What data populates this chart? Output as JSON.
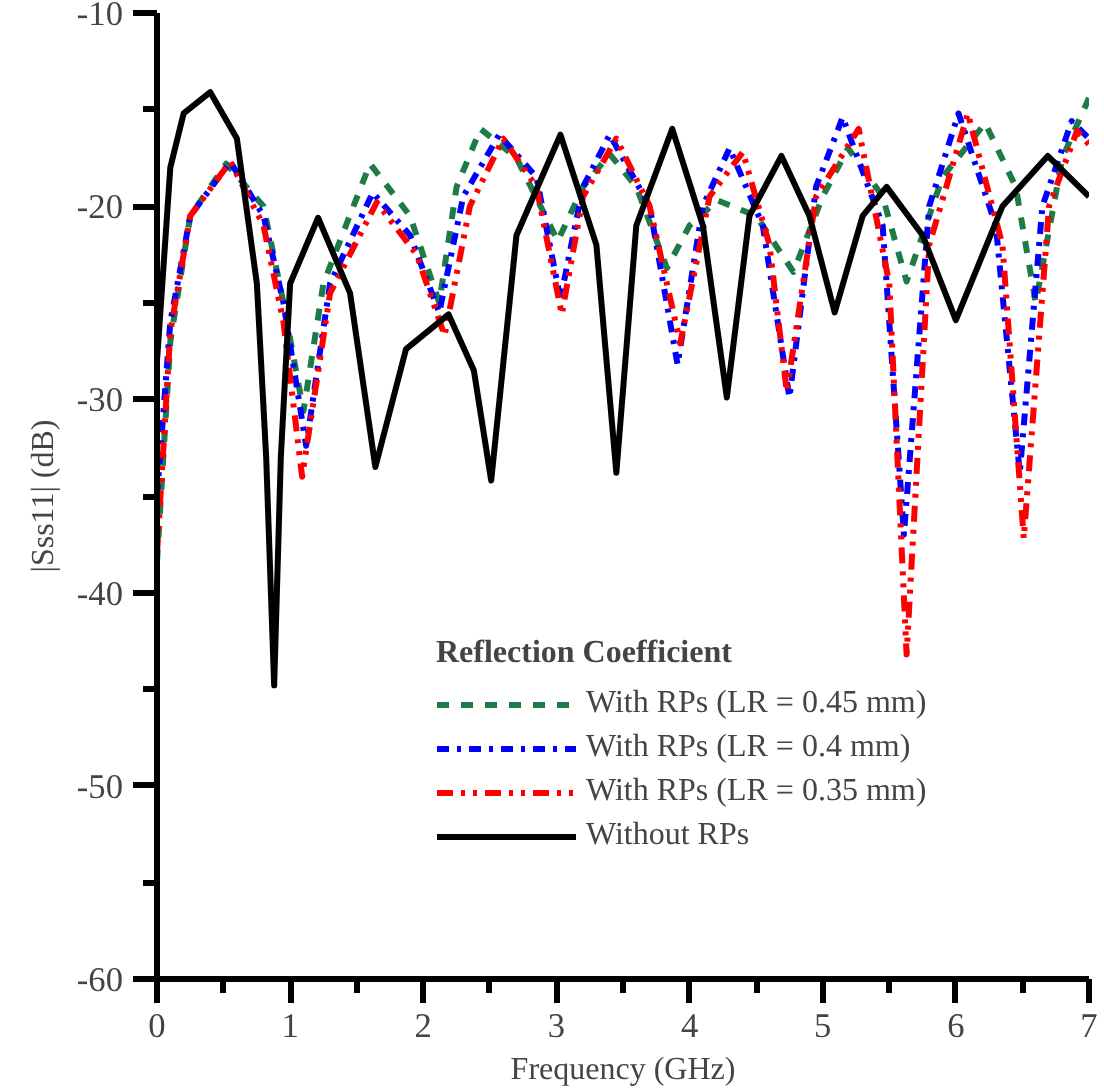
{
  "chart_data": {
    "type": "line",
    "xlabel": "Frequency (GHz)",
    "ylabel": "|Sss11| (dB)",
    "legend_title": "Reflection Coefficient",
    "xlim": [
      0,
      7
    ],
    "ylim": [
      -60,
      -10
    ],
    "xticks": [
      0,
      1,
      2,
      3,
      4,
      5,
      6,
      7
    ],
    "yticks": [
      -60,
      -50,
      -40,
      -30,
      -20,
      -10
    ],
    "grid": false,
    "legend": "bottom",
    "marker": "none",
    "series": [
      {
        "name": "With RPs (LR = 0.45 mm)",
        "color": "#1e7a46",
        "line_style": "dashed",
        "x": [
          0,
          0.1,
          0.25,
          0.52,
          0.8,
          0.95,
          1.1,
          1.25,
          1.6,
          1.9,
          2.12,
          2.25,
          2.43,
          2.7,
          3.01,
          3.2,
          3.4,
          3.6,
          3.83,
          4.0,
          4.21,
          4.5,
          4.78,
          5.0,
          5.19,
          5.45,
          5.63,
          5.9,
          6.22,
          6.45,
          6.6,
          6.8,
          7.0
        ],
        "values": [
          -38.4,
          -27,
          -20.5,
          -17.8,
          -20,
          -25,
          -30.6,
          -24,
          -17.8,
          -20.5,
          -25,
          -19,
          -16,
          -17.5,
          -21.8,
          -19,
          -17.3,
          -19,
          -23.2,
          -21,
          -19.7,
          -20.5,
          -23.4,
          -19.5,
          -17,
          -19.5,
          -23.9,
          -18.5,
          -15.7,
          -19,
          -25,
          -17.5,
          -14.4
        ]
      },
      {
        "name": "With RPs (LR = 0.4 mm)",
        "color": "#0000ff",
        "line_style": "dashdot",
        "x": [
          0,
          0.1,
          0.25,
          0.55,
          0.8,
          0.95,
          1.12,
          1.3,
          1.62,
          1.9,
          2.12,
          2.3,
          2.57,
          2.85,
          3.03,
          3.2,
          3.4,
          3.7,
          3.91,
          4.1,
          4.3,
          4.55,
          4.75,
          4.95,
          5.15,
          5.45,
          5.61,
          5.8,
          6.02,
          6.3,
          6.48,
          6.65,
          6.87,
          7.0
        ],
        "values": [
          -35,
          -26,
          -20.5,
          -17.7,
          -20.5,
          -25,
          -32.4,
          -24,
          -19.3,
          -21.5,
          -25.5,
          -19.5,
          -16.3,
          -18.5,
          -24.8,
          -19,
          -16.3,
          -20,
          -28.2,
          -20,
          -17,
          -21,
          -29.9,
          -19,
          -15.4,
          -21,
          -37,
          -20,
          -15.2,
          -21,
          -33.8,
          -20,
          -15.6,
          -16.5
        ]
      },
      {
        "name": "With RPs (LR = 0.35 mm)",
        "color": "#ff0000",
        "line_style": "dashdotdot",
        "x": [
          0,
          0.1,
          0.25,
          0.55,
          0.8,
          0.95,
          1.09,
          1.3,
          1.65,
          1.95,
          2.16,
          2.35,
          2.6,
          2.85,
          3.04,
          3.2,
          3.45,
          3.7,
          3.93,
          4.15,
          4.4,
          4.6,
          4.73,
          4.95,
          5.27,
          5.5,
          5.63,
          5.8,
          6.09,
          6.35,
          6.51,
          6.7,
          6.91,
          7.0
        ],
        "values": [
          -38,
          -26.5,
          -20.5,
          -17.7,
          -21,
          -26,
          -34,
          -24.5,
          -19.8,
          -22.5,
          -26.7,
          -20,
          -16.5,
          -19,
          -25.6,
          -19.5,
          -16.5,
          -20,
          -27.1,
          -19.5,
          -17.2,
          -22,
          -29.6,
          -19.5,
          -16,
          -24,
          -43.2,
          -22,
          -15.2,
          -22,
          -37.2,
          -20,
          -16.1,
          -16.8
        ]
      },
      {
        "name": "Without RPs",
        "color": "#000000",
        "line_style": "solid",
        "x": [
          0,
          0.1,
          0.2,
          0.4,
          0.6,
          0.75,
          0.82,
          0.88,
          0.93,
          1.0,
          1.21,
          1.45,
          1.64,
          1.87,
          2.19,
          2.38,
          2.51,
          2.7,
          3.03,
          3.3,
          3.45,
          3.6,
          3.87,
          4.1,
          4.28,
          4.45,
          4.69,
          4.9,
          5.09,
          5.3,
          5.48,
          5.75,
          6.0,
          6.35,
          6.69,
          7.0
        ],
        "values": [
          -28,
          -18,
          -15.2,
          -14.1,
          -16.5,
          -24,
          -33,
          -44.8,
          -33,
          -24,
          -20.6,
          -24.5,
          -33.5,
          -27.4,
          -25.6,
          -28.5,
          -34.2,
          -21.5,
          -16.3,
          -22,
          -33.8,
          -21,
          -16,
          -21,
          -29.9,
          -20.5,
          -17.4,
          -20.5,
          -25.5,
          -20.5,
          -19,
          -21.5,
          -25.9,
          -20,
          -17.4,
          -19.5
        ]
      }
    ]
  }
}
